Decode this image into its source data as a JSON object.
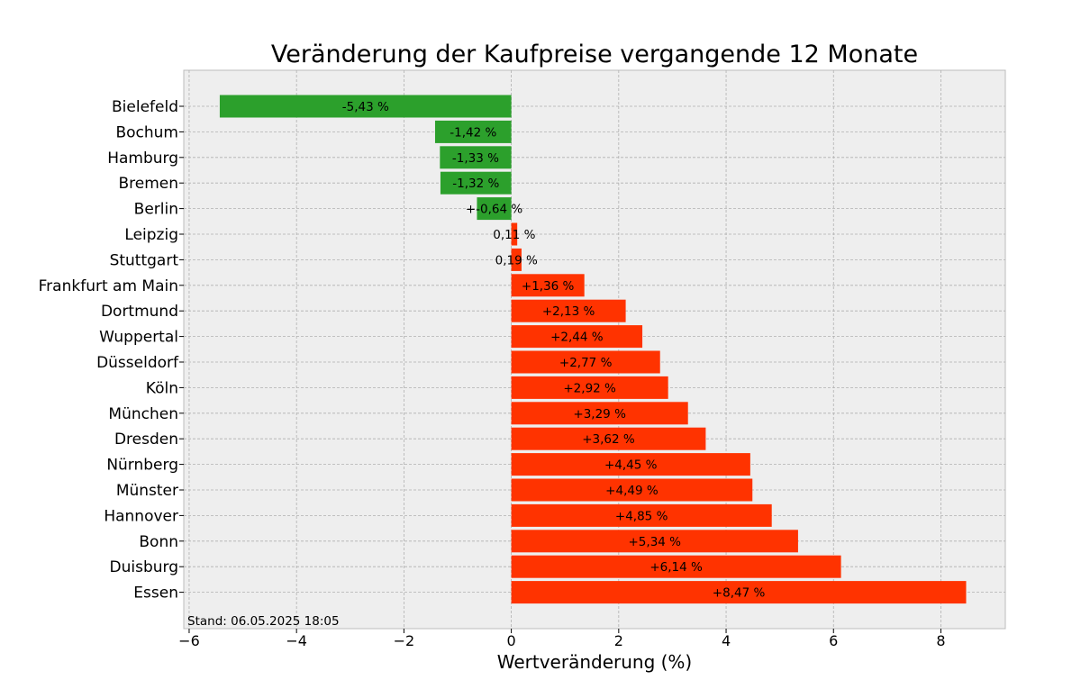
{
  "chart_data": {
    "type": "bar",
    "orientation": "horizontal",
    "title": "Veränderung der Kaufpreise vergangende 12 Monate",
    "xlabel": "Wertveränderung (%)",
    "ylabel": "",
    "xlim": [
      -6.1,
      9.2
    ],
    "xticks": [
      -6,
      -4,
      -2,
      0,
      2,
      4,
      6,
      8
    ],
    "xtick_labels": [
      "−6",
      "−4",
      "−2",
      "0",
      "2",
      "4",
      "6",
      "8"
    ],
    "grid": true,
    "categories": [
      "Bielefeld",
      "Bochum",
      "Hamburg",
      "Bremen",
      "Berlin",
      "Leipzig",
      "Stuttgart",
      "Frankfurt am Main",
      "Dortmund",
      "Wuppertal",
      "Düsseldorf",
      "Köln",
      "München",
      "Dresden",
      "Nürnberg",
      "Münster",
      "Hannover",
      "Bonn",
      "Duisburg",
      "Essen"
    ],
    "values": [
      -5.43,
      -1.42,
      -1.33,
      -1.32,
      -0.64,
      0.11,
      0.19,
      1.36,
      2.13,
      2.44,
      2.77,
      2.92,
      3.29,
      3.62,
      4.45,
      4.49,
      4.85,
      5.34,
      6.14,
      8.47
    ],
    "data_labels": [
      "-5,43 %",
      "-1,42 %",
      "-1,33 %",
      "-1,32 %",
      "+-0,64 %",
      "0,11 %",
      "0,19 %",
      "+1,36 %",
      "+2,13 %",
      "+2,44 %",
      "+2,77 %",
      "+2,92 %",
      "+3,29 %",
      "+3,62 %",
      "+4,45 %",
      "+4,49 %",
      "+4,85 %",
      "+5,34 %",
      "+6,14 %",
      "+8,47 %"
    ],
    "colors": {
      "negative": "#2ca02c",
      "positive": "#ff3300",
      "plot_bg": "#eeeeee",
      "grid": "#b0b0b0",
      "frame": "#bcbcbc"
    },
    "footnote": "Stand: 06.05.2025 18:05"
  }
}
